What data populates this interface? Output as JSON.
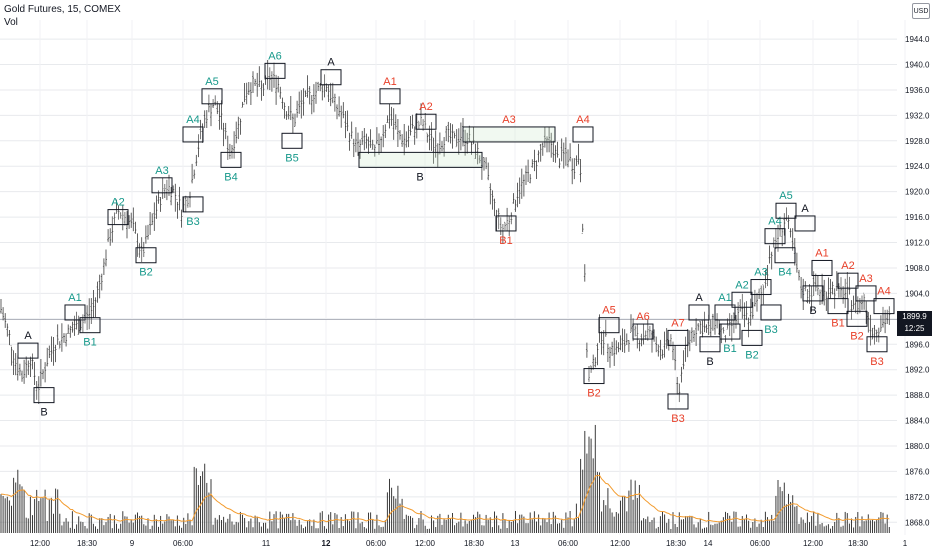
{
  "header": {
    "title": "Gold Futures, 15, COMEX",
    "volume_label": "Vol",
    "currency": "USD"
  },
  "last_price": {
    "value": "1899.9",
    "countdown": "12:25"
  },
  "colors": {
    "teal": "#17998b",
    "red": "#e8402a",
    "black": "#131722",
    "bar": "#3b3b3b",
    "volume": "#3b3b3b",
    "ma": "#f39c2f",
    "grid": "#e8eaed"
  },
  "chart_data": {
    "type": "bar",
    "title": "Gold Futures, 15, COMEX",
    "price_axis": {
      "ticks": [
        "1944.0",
        "1940.0",
        "1936.0",
        "1932.0",
        "1928.0",
        "1924.0",
        "1920.0",
        "1916.0",
        "1912.0",
        "1908.0",
        "1904.0",
        "1900.0",
        "1896.0",
        "1892.0",
        "1888.0",
        "1884.0",
        "1880.0",
        "1876.0",
        "1872.0",
        "1868.0"
      ],
      "range": [
        1866,
        1947
      ]
    },
    "time_axis": {
      "ticks": [
        "12:00",
        "18:30",
        "9",
        "06:00",
        "11",
        "12",
        "06:00",
        "12:00",
        "18:30",
        "13",
        "06:00",
        "12:00",
        "18:30",
        "14",
        "06:00",
        "12:00",
        "18:30",
        "1"
      ]
    },
    "price_path": [
      [
        0,
        1902
      ],
      [
        8,
        1898
      ],
      [
        16,
        1893
      ],
      [
        22,
        1891
      ],
      [
        30,
        1894
      ],
      [
        38,
        1889
      ],
      [
        46,
        1893
      ],
      [
        54,
        1896
      ],
      [
        62,
        1897
      ],
      [
        70,
        1898
      ],
      [
        78,
        1899
      ],
      [
        86,
        1900
      ],
      [
        94,
        1902
      ],
      [
        102,
        1907
      ],
      [
        110,
        1913
      ],
      [
        118,
        1917
      ],
      [
        126,
        1916
      ],
      [
        134,
        1914
      ],
      [
        142,
        1910
      ],
      [
        150,
        1914
      ],
      [
        158,
        1918
      ],
      [
        166,
        1921
      ],
      [
        174,
        1920
      ],
      [
        182,
        1917
      ],
      [
        190,
        1920
      ],
      [
        198,
        1927
      ],
      [
        206,
        1932
      ],
      [
        214,
        1934
      ],
      [
        222,
        1931
      ],
      [
        230,
        1926
      ],
      [
        238,
        1930
      ],
      [
        246,
        1936
      ],
      [
        254,
        1937
      ],
      [
        262,
        1936
      ],
      [
        270,
        1938
      ],
      [
        278,
        1937
      ],
      [
        286,
        1933
      ],
      [
        294,
        1931
      ],
      [
        302,
        1934
      ],
      [
        310,
        1935
      ],
      [
        318,
        1936
      ],
      [
        326,
        1937
      ],
      [
        334,
        1934
      ],
      [
        342,
        1932
      ],
      [
        350,
        1929
      ],
      [
        358,
        1927
      ],
      [
        366,
        1928
      ],
      [
        374,
        1926
      ],
      [
        382,
        1929
      ],
      [
        390,
        1932
      ],
      [
        398,
        1929
      ],
      [
        406,
        1928
      ],
      [
        414,
        1930
      ],
      [
        422,
        1931
      ],
      [
        430,
        1928
      ],
      [
        438,
        1927
      ],
      [
        446,
        1929
      ],
      [
        454,
        1928
      ],
      [
        462,
        1929
      ],
      [
        470,
        1928
      ],
      [
        478,
        1926
      ],
      [
        486,
        1923
      ],
      [
        494,
        1918
      ],
      [
        502,
        1914
      ],
      [
        510,
        1916
      ],
      [
        518,
        1920
      ],
      [
        526,
        1922
      ],
      [
        534,
        1924
      ],
      [
        542,
        1927
      ],
      [
        550,
        1928
      ],
      [
        558,
        1925
      ],
      [
        566,
        1926
      ],
      [
        574,
        1924
      ],
      [
        580,
        1926
      ],
      [
        584,
        1910
      ],
      [
        588,
        1890
      ],
      [
        594,
        1893
      ],
      [
        600,
        1898
      ],
      [
        608,
        1896
      ],
      [
        616,
        1895
      ],
      [
        624,
        1896
      ],
      [
        632,
        1898
      ],
      [
        640,
        1897
      ],
      [
        648,
        1898
      ],
      [
        656,
        1896
      ],
      [
        664,
        1895
      ],
      [
        672,
        1897
      ],
      [
        678,
        1888
      ],
      [
        684,
        1894
      ],
      [
        692,
        1898
      ],
      [
        700,
        1899
      ],
      [
        708,
        1898
      ],
      [
        716,
        1900
      ],
      [
        724,
        1897
      ],
      [
        732,
        1899
      ],
      [
        740,
        1901
      ],
      [
        748,
        1900
      ],
      [
        756,
        1902
      ],
      [
        764,
        1905
      ],
      [
        770,
        1910
      ],
      [
        778,
        1913
      ],
      [
        786,
        1916
      ],
      [
        792,
        1912
      ],
      [
        800,
        1905
      ],
      [
        808,
        1904
      ],
      [
        816,
        1905
      ],
      [
        824,
        1904
      ],
      [
        832,
        1905
      ],
      [
        840,
        1904
      ],
      [
        848,
        1904
      ],
      [
        856,
        1902
      ],
      [
        864,
        1903
      ],
      [
        872,
        1898
      ],
      [
        880,
        1899
      ],
      [
        888,
        1900
      ]
    ],
    "markers": [
      {
        "label": "A",
        "color": "black",
        "x": 28,
        "box_price": 1895,
        "label_pos": "above"
      },
      {
        "label": "B",
        "color": "black",
        "x": 44,
        "box_price": 1888,
        "label_pos": "below"
      },
      {
        "label": "A1",
        "color": "teal",
        "x": 75,
        "box_price": 1901,
        "label_pos": "above"
      },
      {
        "label": "B1",
        "color": "teal",
        "x": 90,
        "box_price": 1899,
        "label_pos": "below"
      },
      {
        "label": "A2",
        "color": "teal",
        "x": 118,
        "box_price": 1916,
        "label_pos": "above"
      },
      {
        "label": "B2",
        "color": "teal",
        "x": 146,
        "box_price": 1910,
        "label_pos": "below"
      },
      {
        "label": "A3",
        "color": "teal",
        "x": 162,
        "box_price": 1921,
        "label_pos": "above"
      },
      {
        "label": "B3",
        "color": "teal",
        "x": 193,
        "box_price": 1918,
        "label_pos": "below"
      },
      {
        "label": "A4",
        "color": "teal",
        "x": 193,
        "box_price": 1929,
        "label_pos": "above"
      },
      {
        "label": "B4",
        "color": "teal",
        "x": 231,
        "box_price": 1925,
        "label_pos": "below"
      },
      {
        "label": "A5",
        "color": "teal",
        "x": 212,
        "box_price": 1935,
        "label_pos": "above"
      },
      {
        "label": "B5",
        "color": "teal",
        "x": 292,
        "box_price": 1928,
        "label_pos": "below"
      },
      {
        "label": "A6",
        "color": "teal",
        "x": 275,
        "box_price": 1939,
        "label_pos": "above"
      },
      {
        "label": "A",
        "color": "black",
        "x": 331,
        "box_price": 1938,
        "label_pos": "above"
      },
      {
        "label": "A1",
        "color": "red",
        "x": 390,
        "box_price": 1935,
        "label_pos": "above"
      },
      {
        "label": "A2",
        "color": "red",
        "x": 426,
        "box_price": 1931,
        "label_pos": "above"
      },
      {
        "label": "A3",
        "color": "red",
        "x": 509,
        "box_price": 1929,
        "label_pos": "above",
        "wide": true,
        "x0": 463,
        "x1": 555
      },
      {
        "label": "B",
        "color": "black",
        "x": 420,
        "box_price": 1925,
        "label_pos": "below",
        "wide": true,
        "x0": 359,
        "x1": 482
      },
      {
        "label": "B1",
        "color": "red",
        "x": 506,
        "box_price": 1915,
        "label_pos": "below"
      },
      {
        "label": "A4",
        "color": "red",
        "x": 583,
        "box_price": 1929,
        "label_pos": "above"
      },
      {
        "label": "B2",
        "color": "red",
        "x": 594,
        "box_price": 1891,
        "label_pos": "below"
      },
      {
        "label": "A5",
        "color": "red",
        "x": 609,
        "box_price": 1899,
        "label_pos": "above"
      },
      {
        "label": "A6",
        "color": "red",
        "x": 643,
        "box_price": 1898,
        "label_pos": "above"
      },
      {
        "label": "B3",
        "color": "red",
        "x": 678,
        "box_price": 1887,
        "label_pos": "below"
      },
      {
        "label": "A7",
        "color": "red",
        "x": 678,
        "box_price": 1897,
        "label_pos": "above"
      },
      {
        "label": "A",
        "color": "black",
        "x": 699,
        "box_price": 1901,
        "label_pos": "above"
      },
      {
        "label": "B",
        "color": "black",
        "x": 710,
        "box_price": 1896,
        "label_pos": "below"
      },
      {
        "label": "A1",
        "color": "teal",
        "x": 725,
        "box_price": 1901,
        "label_pos": "above"
      },
      {
        "label": "B1",
        "color": "teal",
        "x": 730,
        "box_price": 1898,
        "label_pos": "below"
      },
      {
        "label": "A2",
        "color": "teal",
        "x": 742,
        "box_price": 1903,
        "label_pos": "above"
      },
      {
        "label": "B2",
        "color": "teal",
        "x": 752,
        "box_price": 1897,
        "label_pos": "below"
      },
      {
        "label": "A3",
        "color": "teal",
        "x": 761,
        "box_price": 1905,
        "label_pos": "above"
      },
      {
        "label": "B3",
        "color": "teal",
        "x": 771,
        "box_price": 1901,
        "label_pos": "below"
      },
      {
        "label": "A4",
        "color": "teal",
        "x": 775,
        "box_price": 1913,
        "label_pos": "above"
      },
      {
        "label": "B4",
        "color": "teal",
        "x": 785,
        "box_price": 1910,
        "label_pos": "below"
      },
      {
        "label": "A5",
        "color": "teal",
        "x": 786,
        "box_price": 1917,
        "label_pos": "above"
      },
      {
        "label": "A",
        "color": "black",
        "x": 805,
        "box_price": 1915,
        "label_pos": "above"
      },
      {
        "label": "B",
        "color": "black",
        "x": 813,
        "box_price": 1904,
        "label_pos": "below"
      },
      {
        "label": "A1",
        "color": "red",
        "x": 822,
        "box_price": 1908,
        "label_pos": "above"
      },
      {
        "label": "B1",
        "color": "red",
        "x": 838,
        "box_price": 1902,
        "label_pos": "below"
      },
      {
        "label": "A2",
        "color": "red",
        "x": 848,
        "box_price": 1906,
        "label_pos": "above"
      },
      {
        "label": "B2",
        "color": "red",
        "x": 857,
        "box_price": 1900,
        "label_pos": "below"
      },
      {
        "label": "A3",
        "color": "red",
        "x": 866,
        "box_price": 1904,
        "label_pos": "above"
      },
      {
        "label": "B3",
        "color": "red",
        "x": 877,
        "box_price": 1896,
        "label_pos": "below"
      },
      {
        "label": "A4",
        "color": "red",
        "x": 884,
        "box_price": 1902,
        "label_pos": "above"
      }
    ]
  }
}
